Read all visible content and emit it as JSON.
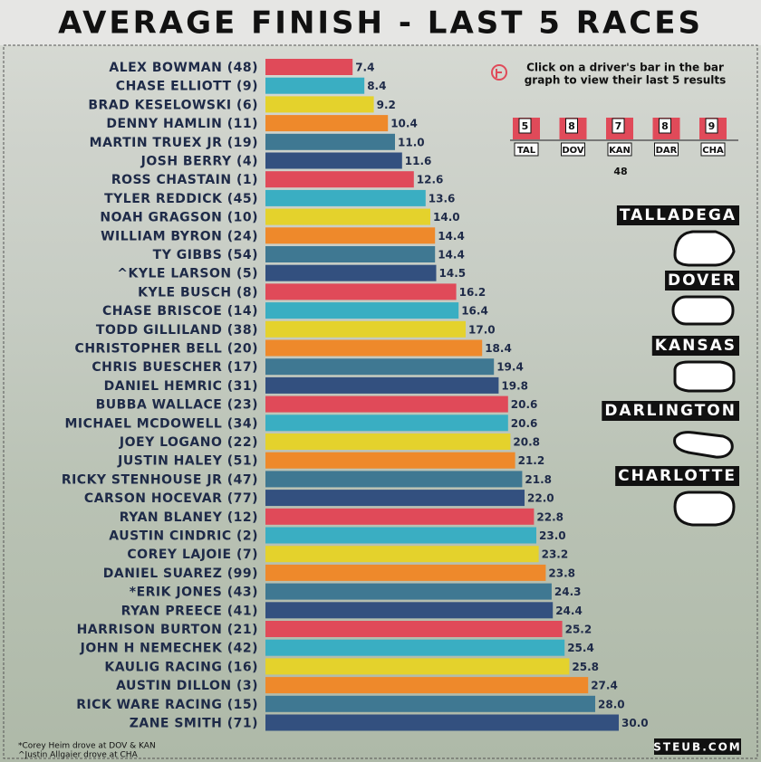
{
  "chart_data": {
    "type": "bar",
    "orientation": "horizontal",
    "title": "AVERAGE FINISH - LAST 5 RACES",
    "categories": [
      "ALEX BOWMAN (48)",
      "CHASE ELLIOTT (9)",
      "BRAD KESELOWSKI (6)",
      "DENNY HAMLIN (11)",
      "MARTIN TRUEX JR (19)",
      "JOSH BERRY (4)",
      "ROSS CHASTAIN (1)",
      "TYLER REDDICK (45)",
      "NOAH GRAGSON (10)",
      "WILLIAM BYRON (24)",
      "TY GIBBS (54)",
      "^KYLE LARSON (5)",
      "KYLE BUSCH (8)",
      "CHASE BRISCOE (14)",
      "TODD GILLILAND (38)",
      "CHRISTOPHER BELL (20)",
      "CHRIS BUESCHER (17)",
      "DANIEL HEMRIC (31)",
      "BUBBA WALLACE (23)",
      "MICHAEL MCDOWELL (34)",
      "JOEY LOGANO (22)",
      "JUSTIN HALEY (51)",
      "RICKY STENHOUSE JR (47)",
      "CARSON HOCEVAR (77)",
      "RYAN BLANEY (12)",
      "AUSTIN CINDRIC (2)",
      "COREY LAJOIE (7)",
      "DANIEL SUAREZ (99)",
      "*ERIK JONES (43)",
      "RYAN PREECE (41)",
      "HARRISON BURTON (21)",
      "JOHN H NEMECHEK (42)",
      "KAULIG RACING (16)",
      "AUSTIN DILLON (3)",
      "RICK WARE RACING (15)",
      "ZANE SMITH (71)"
    ],
    "values": [
      7.4,
      8.4,
      9.2,
      10.4,
      11.0,
      11.6,
      12.6,
      13.6,
      14.0,
      14.4,
      14.4,
      14.5,
      16.2,
      16.4,
      17.0,
      18.4,
      19.4,
      19.8,
      20.6,
      20.6,
      20.8,
      21.2,
      21.8,
      22.0,
      22.8,
      23.0,
      23.2,
      23.8,
      24.3,
      24.4,
      25.2,
      25.4,
      25.8,
      27.4,
      28.0,
      30.0
    ],
    "value_labels": [
      "7.4",
      "8.4",
      "9.2",
      "10.4",
      "11.0",
      "11.6",
      "12.6",
      "13.6",
      "14.0",
      "14.4",
      "14.4",
      "14.5",
      "16.2",
      "16.4",
      "17.0",
      "18.4",
      "19.4",
      "19.8",
      "20.6",
      "20.6",
      "20.8",
      "21.2",
      "21.8",
      "22.0",
      "22.8",
      "23.0",
      "23.2",
      "23.8",
      "24.3",
      "24.4",
      "25.2",
      "25.4",
      "25.8",
      "27.4",
      "28.0",
      "30.0"
    ],
    "colors": [
      "#e04a59",
      "#3aaec2",
      "#e4d22c",
      "#ee892b",
      "#3f7892",
      "#33507f"
    ]
  },
  "panel": {
    "instruction": [
      "Click on a driver's bar in the bar",
      "graph to view their last 5 results"
    ],
    "races": [
      {
        "code": "TAL",
        "result": "5"
      },
      {
        "code": "DOV",
        "result": "8"
      },
      {
        "code": "KAN",
        "result": "7"
      },
      {
        "code": "DAR",
        "result": "8"
      },
      {
        "code": "CHA",
        "result": "9"
      }
    ],
    "car_number": "48",
    "tracks": [
      "TALLADEGA",
      "DOVER",
      "KANSAS",
      "DARLINGTON",
      "CHARLOTTE"
    ]
  },
  "footnotes": [
    "*Corey Heim drove at DOV & KAN",
    "^Justin Allgaier drove at CHA"
  ],
  "credit": "STEUB.COM"
}
